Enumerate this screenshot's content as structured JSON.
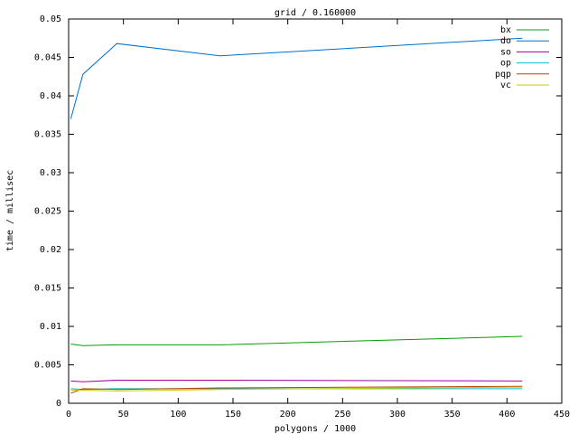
{
  "chart_data": {
    "type": "line",
    "title": "grid / 0.160000",
    "x_label": "polygons / 1000",
    "y_label": "time / millisec",
    "x": [
      2,
      13,
      44,
      138,
      414
    ],
    "series": [
      {
        "name": "bx",
        "color": "#00a000",
        "values": [
          0.0077,
          0.0075,
          0.0076,
          0.0076,
          0.0087
        ]
      },
      {
        "name": "do",
        "color": "#0070c8",
        "values": [
          0.037,
          0.0428,
          0.0468,
          0.0452,
          0.0475
        ]
      },
      {
        "name": "so",
        "color": "#a000a0",
        "values": [
          0.0029,
          0.0028,
          0.003,
          0.003,
          0.0029
        ]
      },
      {
        "name": "op",
        "color": "#00c0c0",
        "values": [
          0.0019,
          0.0018,
          0.0019,
          0.0019,
          0.0019
        ]
      },
      {
        "name": "pqp",
        "color": "#c04000",
        "values": [
          0.0013,
          0.0019,
          0.0018,
          0.002,
          0.0022
        ]
      },
      {
        "name": "vc",
        "color": "#c8c800",
        "values": [
          0.0017,
          0.0017,
          0.0016,
          0.0018,
          0.0021
        ]
      }
    ],
    "xlim": [
      0,
      450
    ],
    "xticks": [
      0,
      50,
      100,
      150,
      200,
      250,
      300,
      350,
      400,
      450
    ],
    "ylim": [
      0,
      0.05
    ],
    "yticks": [
      0,
      0.005,
      0.01,
      0.015,
      0.02,
      0.025,
      0.03,
      0.035,
      0.04,
      0.045,
      0.05
    ],
    "legend": "top-right"
  }
}
